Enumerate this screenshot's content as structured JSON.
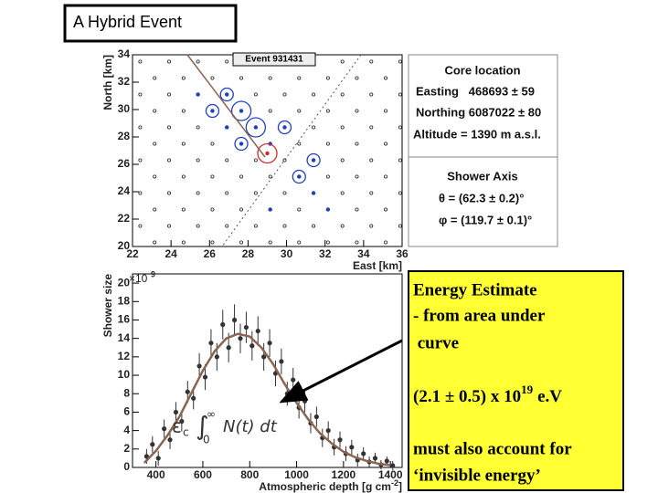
{
  "title": "A Hybrid Event",
  "info_panel": {
    "core_title": "Core location",
    "core_lines": [
      "Easting   468693 ± 59",
      "Northing 6087022 ± 80",
      "Altitude = 1390 m a.s.l."
    ],
    "axis_title": "Shower Axis",
    "axis_lines": [
      "θ = (62.3 ± 0.2)°",
      "φ = (119.7 ± 0.1)°"
    ]
  },
  "energy_box": {
    "lines": [
      "Energy Estimate",
      "- from area under",
      " curve"
    ],
    "estimate": "(2.1 ± 0.5) x 10",
    "exponent": "19",
    "unit": "e.V",
    "note": [
      "must also account for",
      "‘invisible energy’"
    ]
  },
  "chart_data": [
    {
      "type": "scatter",
      "title": "Event 931431",
      "xlabel": "East [km]",
      "ylabel": "North [km]",
      "xlim": [
        22,
        36
      ],
      "ylim": [
        20,
        34
      ],
      "xticks": [
        22,
        24,
        26,
        28,
        30,
        32,
        34,
        36
      ],
      "yticks": [
        20,
        22,
        24,
        26,
        28,
        30,
        32,
        34
      ],
      "series": [
        {
          "color": "#222222",
          "x": [
            22.4,
            23.9,
            25.4,
            26.9,
            28.4,
            29.9,
            31.4,
            32.9,
            34.4,
            35.9,
            23.15,
            24.65,
            26.15,
            27.65,
            29.15,
            30.65,
            32.15,
            33.65,
            35.15,
            22.4,
            23.9,
            25.4,
            26.9,
            28.4,
            29.9,
            31.4,
            32.9,
            34.4,
            35.9,
            23.15,
            24.65,
            26.15,
            27.65,
            29.15,
            30.65,
            32.15,
            33.65,
            35.15,
            22.4,
            23.9,
            25.4,
            26.9,
            28.4,
            29.9,
            31.4,
            32.9,
            34.4,
            35.9,
            23.15,
            24.65,
            26.15,
            27.65,
            29.15,
            30.65,
            32.15,
            33.65,
            35.15,
            22.4,
            23.9,
            25.4,
            26.9,
            28.4,
            29.9,
            31.4,
            32.9,
            34.4,
            35.9,
            23.15,
            24.65,
            26.15,
            27.65,
            29.15,
            30.65,
            32.15,
            33.65,
            35.15,
            22.4,
            23.9,
            25.4,
            26.9,
            28.4,
            29.9,
            31.4,
            32.9,
            34.4,
            35.9,
            23.15,
            24.65,
            26.15,
            27.65,
            29.15,
            30.65,
            32.15,
            33.65,
            35.15,
            22.4,
            23.9,
            25.4,
            26.9,
            28.4,
            29.9,
            31.4,
            32.9,
            34.4,
            35.9,
            23.15,
            24.65,
            26.15,
            27.65,
            29.15,
            30.65,
            32.15,
            33.65,
            35.15
          ],
          "values": [
            33.5,
            33.5,
            33.5,
            33.5,
            33.5,
            33.5,
            33.5,
            33.5,
            33.5,
            33.5,
            32.3,
            32.3,
            32.3,
            32.3,
            32.3,
            32.3,
            32.3,
            32.3,
            32.3,
            31.1,
            31.1,
            31.1,
            31.1,
            31.1,
            31.1,
            31.1,
            31.1,
            31.1,
            31.1,
            29.9,
            29.9,
            29.9,
            29.9,
            29.9,
            29.9,
            29.9,
            29.9,
            29.9,
            28.7,
            28.7,
            28.7,
            28.7,
            28.7,
            28.7,
            28.7,
            28.7,
            28.7,
            28.7,
            27.5,
            27.5,
            27.5,
            27.5,
            27.5,
            27.5,
            27.5,
            27.5,
            27.5,
            26.3,
            26.3,
            26.3,
            26.3,
            26.3,
            26.3,
            26.3,
            26.3,
            26.3,
            26.3,
            25.1,
            25.1,
            25.1,
            25.1,
            25.1,
            25.1,
            25.1,
            25.1,
            25.1,
            23.9,
            23.9,
            23.9,
            23.9,
            23.9,
            23.9,
            23.9,
            23.9,
            23.9,
            23.9,
            22.7,
            22.7,
            22.7,
            22.7,
            22.7,
            22.7,
            22.7,
            22.7,
            22.7,
            21.5,
            21.5,
            21.5,
            21.5,
            21.5,
            21.5,
            21.5,
            21.5,
            21.5,
            21.5,
            20.3,
            20.3,
            20.3,
            20.3,
            20.3,
            20.3,
            20.3,
            20.3,
            20.3
          ]
        },
        {
          "color": "#1f3fbf",
          "x": [
            25.4,
            26.9,
            26.15,
            27.65,
            26.9,
            28.4,
            29.9,
            27.65,
            29.15,
            31.4,
            30.65,
            31.4,
            29.15,
            32.15
          ],
          "values": [
            31.1,
            31.1,
            29.9,
            29.9,
            28.7,
            28.7,
            28.7,
            27.5,
            27.5,
            26.3,
            25.1,
            23.9,
            22.7,
            22.7
          ],
          "sizes": [
            1,
            2,
            2,
            3,
            1,
            3,
            2,
            2,
            1,
            2,
            2,
            1,
            1,
            1
          ]
        },
        {
          "color": "#d62728",
          "x": [
            29.0
          ],
          "values": [
            26.8
          ],
          "sizes": [
            3
          ]
        }
      ]
    },
    {
      "type": "scatter",
      "xlabel": "Atmospheric depth [g cm",
      "xlabel_sup": "-2",
      "xlabel_end": "]",
      "ylabel": "Shower size",
      "y_multiplier": "×10",
      "y_multiplier_exp": "9",
      "xlim": [
        300,
        1450
      ],
      "ylim": [
        0,
        21
      ],
      "xticks": [
        400,
        600,
        800,
        1000,
        1200,
        1400
      ],
      "yticks": [
        0,
        2,
        4,
        6,
        8,
        10,
        12,
        14,
        16,
        18,
        20
      ],
      "annotation": {
        "factor": "ε",
        "factor_sub": "c",
        "integral": "∫",
        "upper": "∞",
        "lower": "0",
        "integrand": "N(t) dt"
      },
      "series": [
        {
          "style": "points",
          "color": "#333333",
          "x": [
            360,
            385,
            410,
            435,
            460,
            485,
            510,
            535,
            560,
            585,
            610,
            635,
            660,
            685,
            710,
            735,
            760,
            785,
            810,
            835,
            860,
            885,
            910,
            935,
            960,
            985,
            1010,
            1035,
            1060,
            1085,
            1110,
            1135,
            1160,
            1185,
            1210,
            1235,
            1260,
            1285,
            1310,
            1335,
            1360,
            1385,
            1410
          ],
          "values": [
            1.2,
            2.5,
            1.0,
            4.2,
            3.0,
            6.0,
            5.0,
            8.2,
            7.5,
            11.0,
            9.8,
            13.5,
            12.0,
            15.5,
            13.0,
            16.0,
            14.0,
            15.2,
            13.2,
            14.8,
            12.0,
            13.5,
            10.2,
            11.5,
            8.0,
            9.5,
            6.5,
            7.2,
            4.8,
            5.5,
            3.2,
            4.0,
            2.2,
            3.0,
            1.5,
            2.2,
            0.8,
            1.5,
            0.6,
            1.0,
            0.3,
            0.7,
            0.2
          ],
          "errors": [
            0.8,
            0.9,
            0.8,
            1.0,
            1.0,
            1.1,
            1.1,
            1.2,
            1.2,
            1.4,
            1.4,
            1.5,
            1.5,
            1.6,
            1.6,
            1.7,
            1.6,
            1.7,
            1.6,
            1.6,
            1.5,
            1.5,
            1.4,
            1.4,
            1.3,
            1.3,
            1.2,
            1.2,
            1.1,
            1.1,
            1.0,
            1.0,
            0.9,
            0.9,
            0.8,
            0.8,
            0.7,
            0.7,
            0.6,
            0.6,
            0.5,
            0.5,
            0.5
          ]
        },
        {
          "style": "line",
          "color": "#8b6552",
          "x": [
            350,
            400,
            450,
            500,
            550,
            600,
            650,
            700,
            750,
            800,
            850,
            900,
            950,
            1000,
            1050,
            1100,
            1150,
            1200,
            1250,
            1300,
            1350,
            1400
          ],
          "values": [
            0.5,
            1.8,
            3.5,
            5.5,
            8.0,
            10.5,
            12.6,
            14.0,
            14.5,
            14.2,
            13.0,
            11.2,
            9.0,
            7.0,
            5.2,
            3.7,
            2.6,
            1.7,
            1.1,
            0.7,
            0.4,
            0.25
          ]
        }
      ]
    }
  ]
}
